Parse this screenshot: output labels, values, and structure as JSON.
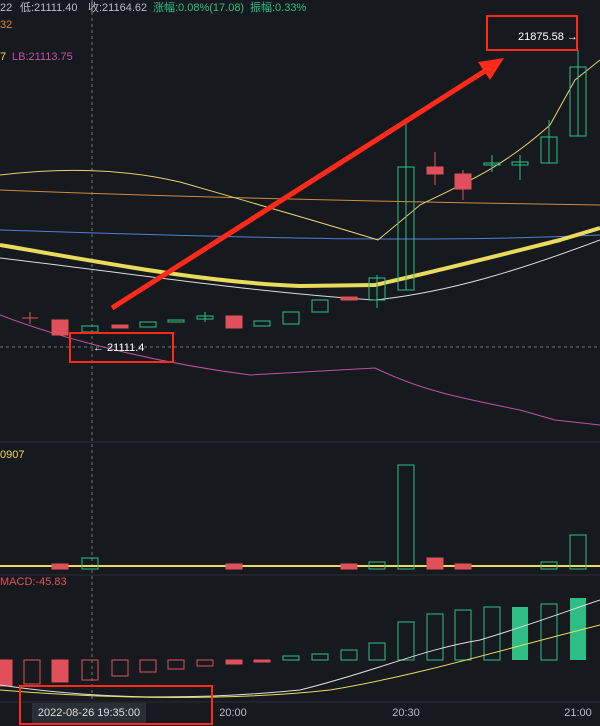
{
  "header": {
    "high_fragment": "22",
    "low": "低:21111.40",
    "close": "收:21164.62",
    "change": "涨幅:0.08%(17.08)",
    "amplitude": "振幅:0.33%"
  },
  "indicators": {
    "ma_fragment": "32",
    "boll_fragment": "7",
    "lb": "LB:21113.75",
    "volume_fragment": "0907",
    "macd": "MACD:-45.83"
  },
  "annotations": {
    "high_price": "21875.58 →",
    "low_price": "← 21111.4"
  },
  "x_axis": {
    "cursor_time": "2022-08-26 19:35:00",
    "labels": [
      "20:00",
      "20:30",
      "21:00"
    ]
  }
}
